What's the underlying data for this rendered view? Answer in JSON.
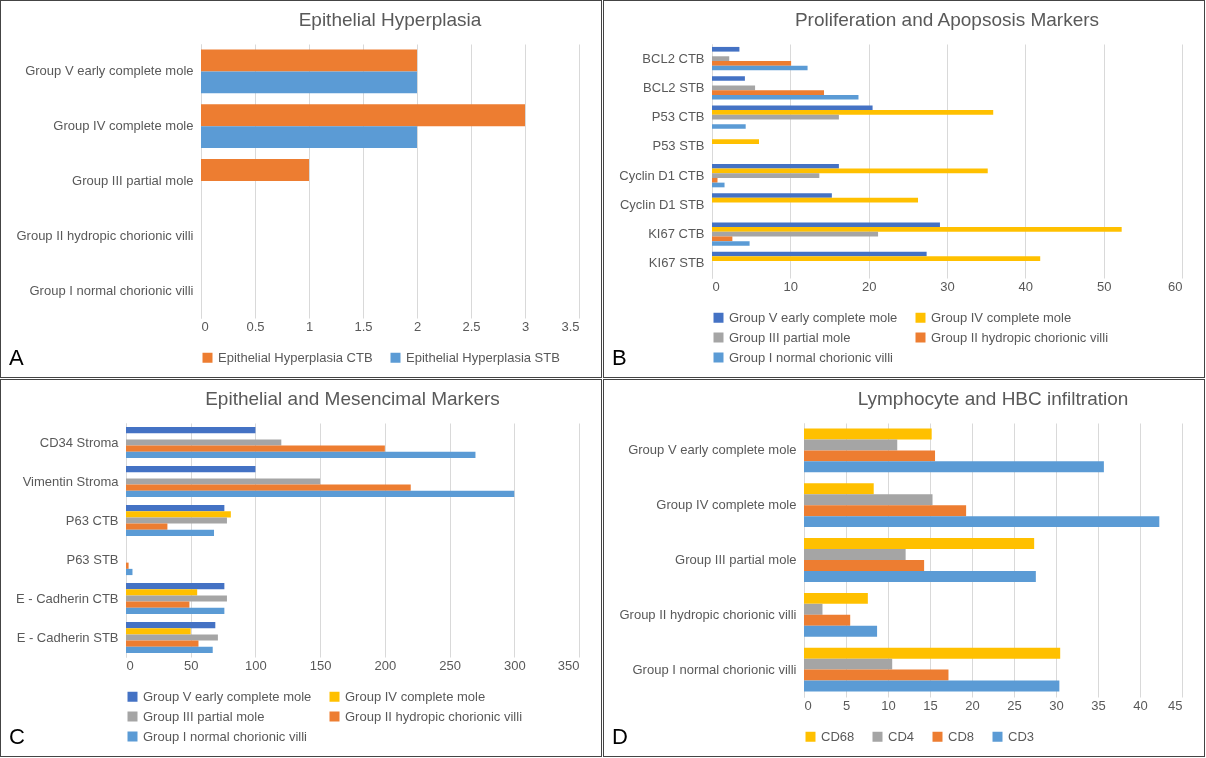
{
  "chart_data": [
    {
      "type": "bar",
      "orientation": "horizontal",
      "title": "Epithelial Hyperplasia",
      "categories": [
        "Group V early complete mole",
        "Group IV complete mole",
        "Group III partial mole",
        "Group II hydropic chorionic villi",
        "Group I normal chorionic villi"
      ],
      "series": [
        {
          "name": "Epithelial Hyperplasia CTB",
          "color": "#ed7d31",
          "values": [
            2,
            3,
            1,
            0,
            0
          ]
        },
        {
          "name": "Epithelial Hyperplasia STB",
          "color": "#5b9bd5",
          "values": [
            2,
            2,
            0,
            0,
            0
          ]
        }
      ],
      "xlim": [
        0,
        3.5
      ],
      "xticks": [
        0,
        0.5,
        1,
        1.5,
        2,
        2.5,
        3,
        3.5
      ],
      "grid": "x",
      "legend": "bottom",
      "annotations": [
        "A"
      ]
    },
    {
      "type": "bar",
      "orientation": "horizontal",
      "title": "Proliferation and Apopsosis Markers",
      "categories": [
        "BCL2 CTB",
        "BCL2 STB",
        "P53 CTB",
        "P53 STB",
        "Cyclin D1 CTB",
        "Cyclin D1 STB",
        "KI67 CTB",
        "KI67 STB"
      ],
      "series": [
        {
          "name": "Group V early complete mole",
          "color": "#4472c4",
          "values": [
            3.5,
            4.2,
            20.5,
            0,
            16.2,
            15.3,
            29.1,
            27.4
          ]
        },
        {
          "name": "Group IV complete mole",
          "color": "#ffc000",
          "values": [
            0,
            0,
            35.9,
            6,
            35.2,
            26.3,
            52.3,
            41.9
          ]
        },
        {
          "name": "Group III partial mole",
          "color": "#a5a5a5",
          "values": [
            2.2,
            5.5,
            16.2,
            0,
            13.7,
            0,
            21.2,
            0
          ]
        },
        {
          "name": "Group II hydropic chorionic villi",
          "color": "#ed7d31",
          "values": [
            10.1,
            14.3,
            0,
            0,
            0.7,
            0,
            2.6,
            0
          ]
        },
        {
          "name": "Group I normal chorionic villi",
          "color": "#5b9bd5",
          "values": [
            12.2,
            18.7,
            4.3,
            0,
            1.6,
            0,
            4.8,
            0
          ]
        }
      ],
      "xlim": [
        0,
        60
      ],
      "xticks": [
        0,
        10,
        20,
        30,
        40,
        50,
        60
      ],
      "grid": "x",
      "legend": "bottom",
      "annotations": [
        "B"
      ]
    },
    {
      "type": "bar",
      "orientation": "horizontal",
      "title": "Epithelial and Mesencimal Markers",
      "categories": [
        "CD34 Stroma",
        "Vimentin Stroma",
        "P63 CTB",
        "P63 STB",
        "E - Cadherin CTB",
        "E - Cadherin STB"
      ],
      "series": [
        {
          "name": "Group V early complete mole",
          "color": "#4472c4",
          "values": [
            100,
            100,
            76,
            0,
            76,
            69
          ]
        },
        {
          "name": "Group IV complete mole",
          "color": "#ffc000",
          "values": [
            0,
            0,
            81,
            0,
            55,
            50
          ]
        },
        {
          "name": "Group III partial mole",
          "color": "#a5a5a5",
          "values": [
            120,
            150,
            78,
            0,
            78,
            71
          ]
        },
        {
          "name": "Group II hydropic chorionic villi",
          "color": "#ed7d31",
          "values": [
            200,
            220,
            32,
            2,
            49,
            56
          ]
        },
        {
          "name": "Group I normal chorionic villi",
          "color": "#5b9bd5",
          "values": [
            270,
            300,
            68,
            5,
            76,
            67
          ]
        }
      ],
      "xlim": [
        0,
        350
      ],
      "xticks": [
        0,
        50,
        100,
        150,
        200,
        250,
        300,
        350
      ],
      "grid": "x",
      "legend": "bottom",
      "annotations": [
        "C"
      ]
    },
    {
      "type": "bar",
      "orientation": "horizontal",
      "title": "Lymphocyte and HBC infiltration",
      "categories": [
        "Group V early complete mole",
        "Group IV complete mole",
        "Group III partial mole",
        "Group II hydropic chorionic villi",
        "Group I normal chorionic villi"
      ],
      "series": [
        {
          "name": "CD68",
          "color": "#ffc000",
          "values": [
            15.2,
            8.3,
            27.4,
            7.6,
            30.5
          ]
        },
        {
          "name": "CD4",
          "color": "#a5a5a5",
          "values": [
            11.1,
            15.3,
            12.1,
            2.2,
            10.5
          ]
        },
        {
          "name": "CD8",
          "color": "#ed7d31",
          "values": [
            15.6,
            19.3,
            14.3,
            5.5,
            17.2
          ]
        },
        {
          "name": "CD3",
          "color": "#5b9bd5",
          "values": [
            35.7,
            42.3,
            27.6,
            8.7,
            30.4
          ]
        }
      ],
      "xlim": [
        0,
        45
      ],
      "xticks": [
        0,
        5,
        10,
        15,
        20,
        25,
        30,
        35,
        40,
        45
      ],
      "grid": "x",
      "legend": "bottom",
      "annotations": [
        "D"
      ]
    }
  ]
}
